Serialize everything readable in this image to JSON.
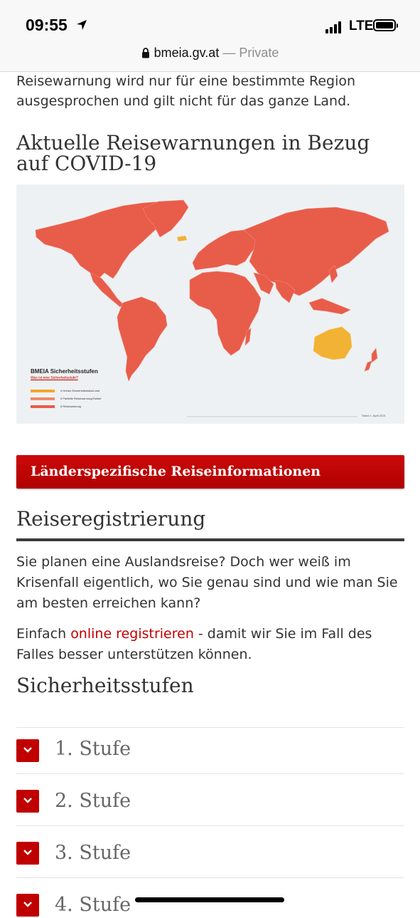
{
  "status_bar": {
    "time": "09:55",
    "network": "LTE"
  },
  "url_bar": {
    "host": "bmeia.gv.at",
    "separator": " — ",
    "mode": "Private"
  },
  "intro_text": "Reisewarnung wird nur für eine bestimmte Region ausgesprochen und gilt nicht für das ganze Land.",
  "covid_heading": "Aktuelle Reisewarnungen in Bezug auf COVID-19",
  "map": {
    "legend_title": "BMEIA Sicherheitsstufen",
    "legend_link": "Was ist eine Sicherheitsstufe?",
    "legend_items": [
      {
        "label": "4 Hohes Sicherheitsrisiko/Land",
        "color": "#f2a62a"
      },
      {
        "label": "5 Partielle Reisewarnung/Gebiet",
        "color": "#ef8a6a"
      },
      {
        "label": "6 Reisewarnung",
        "color": "#e85c4a"
      }
    ],
    "date_note": "Stand 1. April 2021",
    "colors": {
      "warning": "#e85c4a",
      "high_risk": "#f2b233",
      "background": "#eef1f3"
    }
  },
  "cta_button": "Länderspezifische Reiseinformationen",
  "registration": {
    "heading": "Reiseregistrierung",
    "paragraph": "Sie planen eine Auslandsreise? Doch wer weiß im Krisenfall eigentlich, wo Sie genau sind und wie man Sie am besten erreichen kann?",
    "p2_before": "Einfach ",
    "p2_link": "online registrieren",
    "p2_after": " - damit wir Sie im Fall des Falles besser unterstützen können."
  },
  "security_levels": {
    "heading": "Sicherheitsstufen",
    "items": [
      "1. Stufe",
      "2. Stufe",
      "3. Stufe",
      "4. Stufe"
    ]
  },
  "colors": {
    "accent": "#c00000",
    "text": "#333333"
  }
}
